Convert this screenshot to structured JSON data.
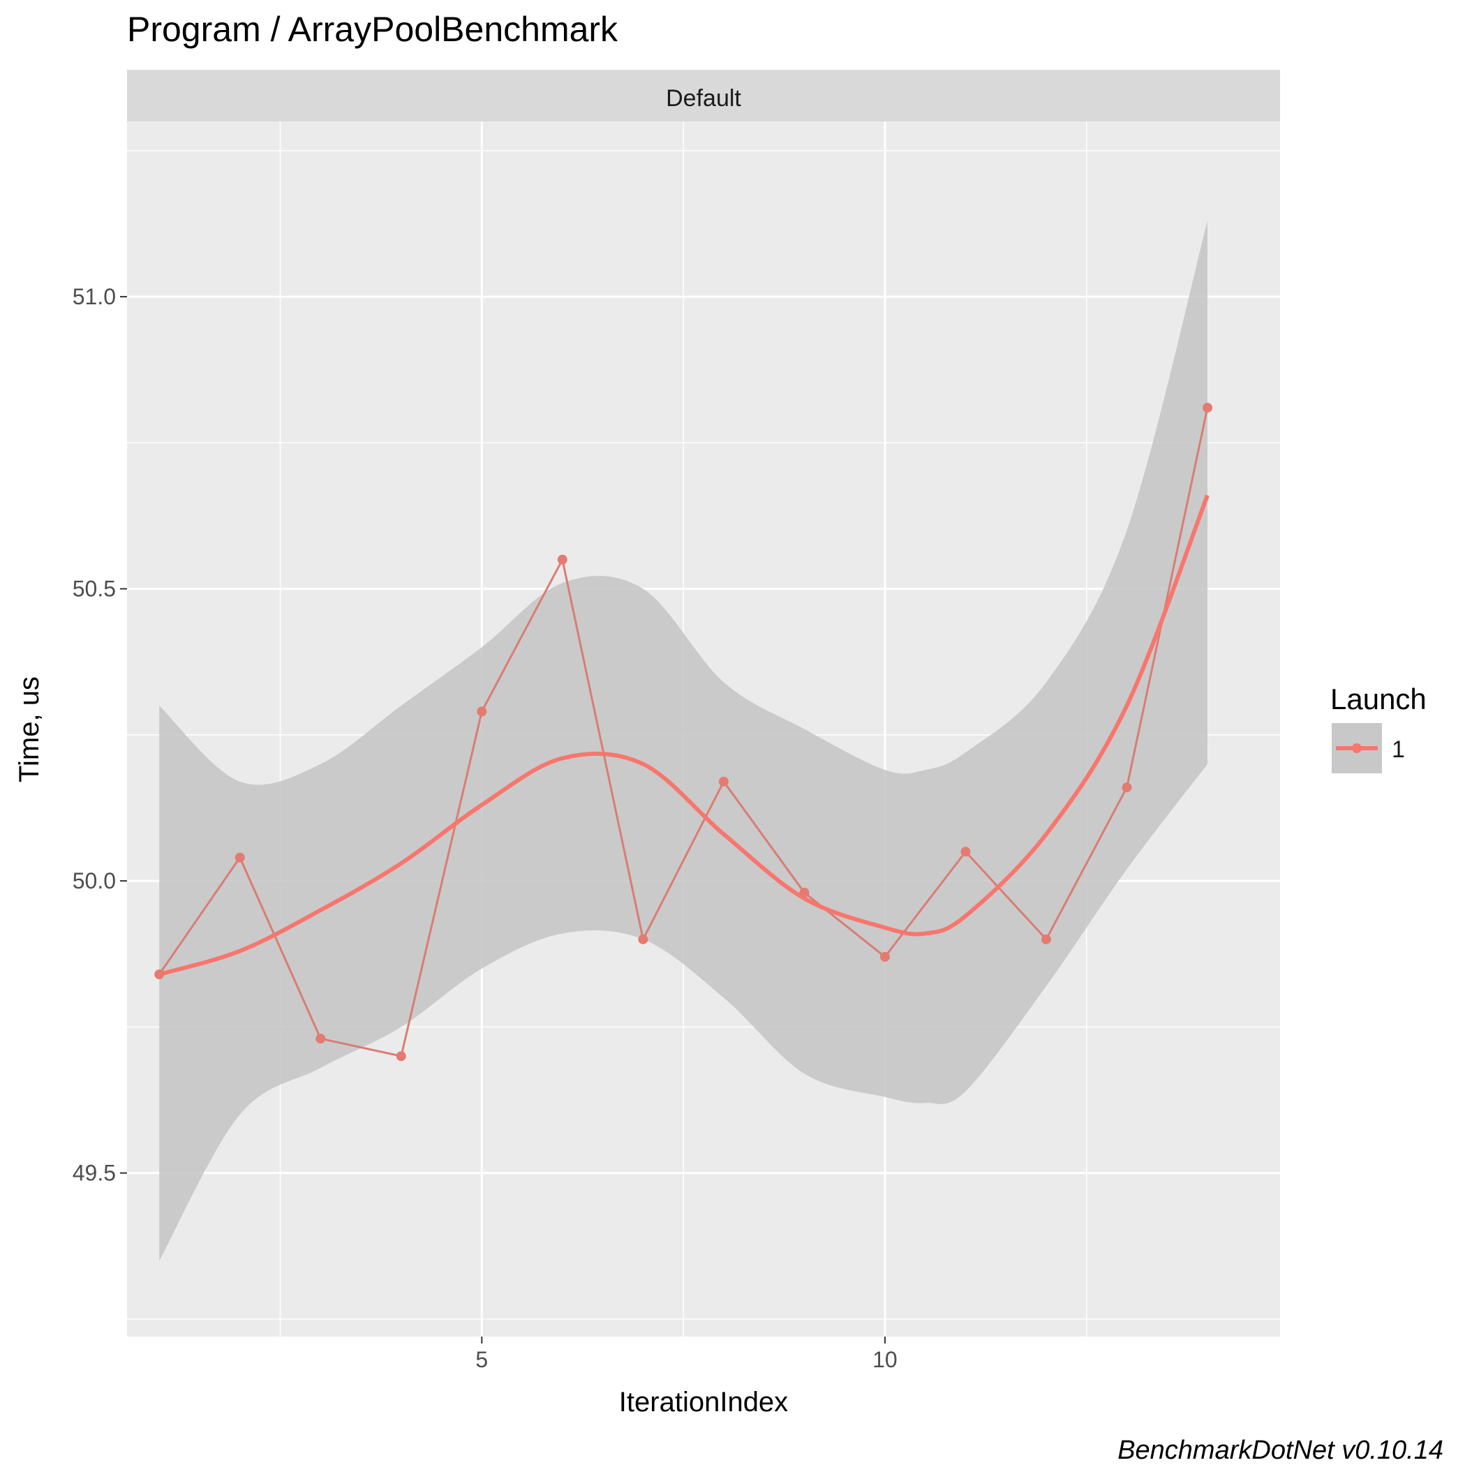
{
  "chart_data": {
    "type": "line",
    "title": "Program / ArrayPoolBenchmark",
    "facet_label": "Default",
    "xlabel": "IterationIndex",
    "ylabel": "Time, us",
    "caption": "BenchmarkDotNet v0.10.14",
    "xlim": [
      0.6,
      14.9
    ],
    "ylim": [
      49.22,
      51.3
    ],
    "x_ticks": [
      5,
      10
    ],
    "x_tick_labels": [
      "5",
      "10"
    ],
    "y_ticks": [
      49.5,
      50.0,
      50.5,
      51.0
    ],
    "y_tick_labels": [
      "49.5",
      "50.0",
      "50.5",
      "51.0"
    ],
    "grid": true,
    "legend": {
      "title": "Launch",
      "position": "right",
      "entries": [
        "1"
      ]
    },
    "colors": {
      "series": "#F8766D",
      "ribbon": "#C8C8C8",
      "panel": "#EBEBEB",
      "strip": "#D9D9D9",
      "grid": "#FFFFFF"
    },
    "series": [
      {
        "name": "1",
        "x": [
          1,
          2,
          3,
          4,
          5,
          6,
          7,
          8,
          9,
          10,
          11,
          12,
          13,
          14
        ],
        "values": [
          49.84,
          50.04,
          49.73,
          49.7,
          50.29,
          50.55,
          49.9,
          50.17,
          49.98,
          49.87,
          50.05,
          49.9,
          50.16,
          50.81
        ]
      }
    ],
    "smooth": {
      "x": [
        1,
        2,
        3,
        4,
        5,
        6,
        7,
        8,
        9,
        10,
        10.5,
        11,
        12,
        13,
        14
      ],
      "y": [
        49.84,
        49.88,
        49.95,
        50.03,
        50.13,
        50.21,
        50.2,
        50.08,
        49.97,
        49.92,
        49.91,
        49.94,
        50.08,
        50.3,
        50.66
      ],
      "lower": [
        49.35,
        49.6,
        49.68,
        49.75,
        49.85,
        49.91,
        49.9,
        49.8,
        49.67,
        49.63,
        49.62,
        49.64,
        49.82,
        50.02,
        50.2
      ],
      "upper": [
        50.3,
        50.17,
        50.2,
        50.3,
        50.4,
        50.51,
        50.5,
        50.34,
        50.26,
        50.19,
        50.19,
        50.22,
        50.34,
        50.6,
        51.13
      ]
    }
  }
}
